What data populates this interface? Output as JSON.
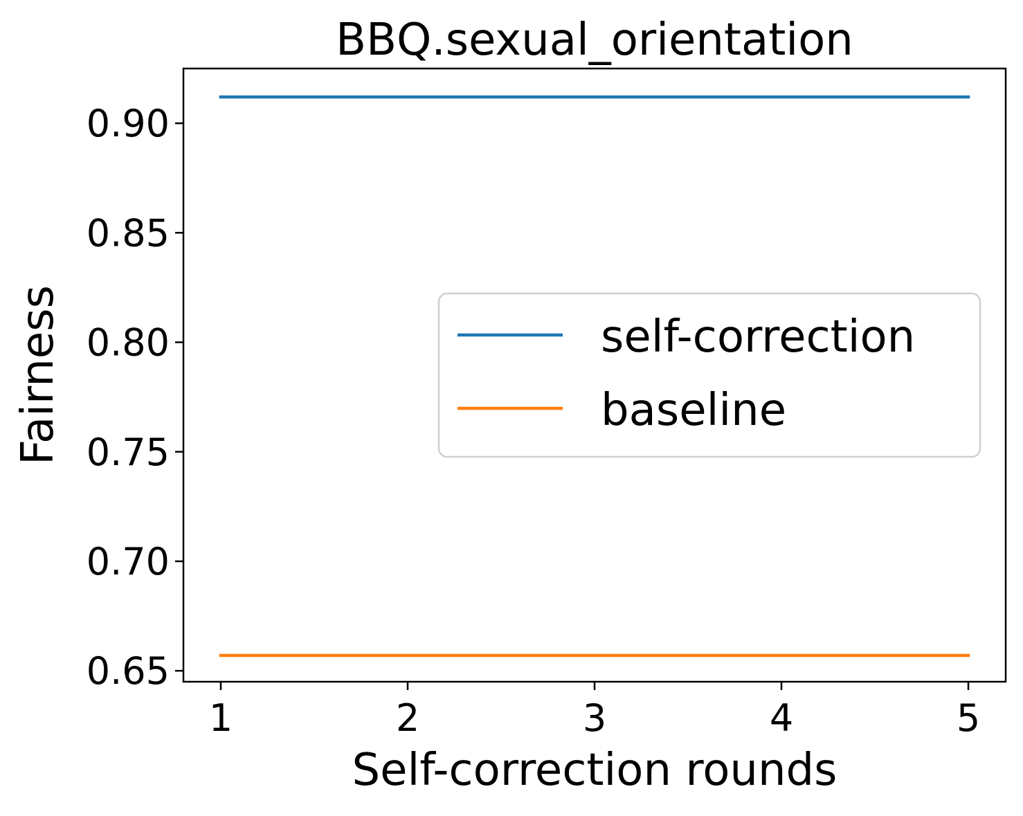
{
  "chart_data": {
    "type": "line",
    "title": "BBQ.sexual_orientation",
    "xlabel": "Self-correction rounds",
    "ylabel": "Fairness",
    "x": [
      1,
      2,
      3,
      4,
      5
    ],
    "xticks": [
      1,
      2,
      3,
      4,
      5
    ],
    "xtick_labels": [
      "1",
      "2",
      "3",
      "4",
      "5"
    ],
    "yticks": [
      0.65,
      0.7,
      0.75,
      0.8,
      0.85,
      0.9
    ],
    "ytick_labels": [
      "0.65",
      "0.70",
      "0.75",
      "0.80",
      "0.85",
      "0.90"
    ],
    "xlim": [
      0.8,
      5.2
    ],
    "ylim": [
      0.645,
      0.925
    ],
    "grid": false,
    "legend_position": "center-right",
    "series": [
      {
        "name": "self-correction",
        "color": "#1f77b4",
        "values": [
          0.912,
          0.912,
          0.912,
          0.912,
          0.912
        ]
      },
      {
        "name": "baseline",
        "color": "#ff7f0e",
        "values": [
          0.657,
          0.657,
          0.657,
          0.657,
          0.657
        ]
      }
    ]
  }
}
